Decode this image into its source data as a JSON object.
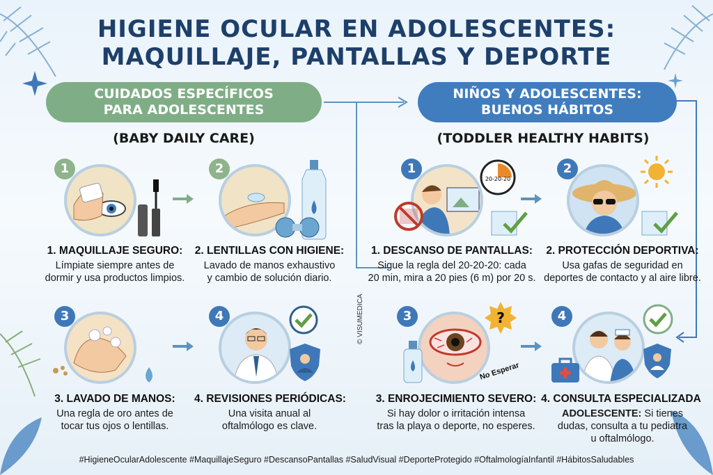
{
  "title": {
    "line1": "HIGIENE OCULAR EN ADOLESCENTES:",
    "line2": "MAQUILLAJE, PANTALLAS Y DEPORTE"
  },
  "left": {
    "banner_line1": "CUIDADOS ESPECÍFICOS",
    "banner_line2": "PARA ADOLESCENTES",
    "subtitle": "(BABY DAILY CARE)",
    "items": [
      {
        "num": "1",
        "title": "1. MAQUILLAJE SEGURO:",
        "text1": "Límpiate siempre antes de",
        "text2": "dormir y usa productos limpios."
      },
      {
        "num": "2",
        "title": "2. LENTILLAS CON HIGIENE:",
        "text1": "Lavado de manos exhaustivo",
        "text2": "y cambio de solución diario."
      },
      {
        "num": "3",
        "title": "3. LAVADO DE MANOS:",
        "text1": "Una regla de oro antes de",
        "text2": "tocar tus ojos o lentillas."
      },
      {
        "num": "4",
        "title": "4. REVISIONES PERIÓDICAS:",
        "text1": "Una visita anual al",
        "text2": "oftalmólogo es clave."
      }
    ]
  },
  "right": {
    "banner_line1": "NIÑOS Y ADOLESCENTES:",
    "banner_line2": "BUENOS HÁBITOS",
    "subtitle": "(TODDLER HEALTHY HABITS)",
    "items": [
      {
        "num": "1",
        "title": "1. DESCANSO DE PANTALLAS:",
        "text1": "Sigue la regla del 20-20-20: cada",
        "text2": "20 min, mira a 20 pies (6 m) por 20 s."
      },
      {
        "num": "2",
        "title": "2. PROTECCIÓN DEPORTIVA:",
        "text1": "Usa gafas de seguridad en",
        "text2": "deportes de contacto y al aire libre."
      },
      {
        "num": "3",
        "title": "3. ENROJECIMIENTO SEVERO:",
        "text1": "Si hay dolor o irritación intensa",
        "text2": "tras la playa o deporte, no esperes."
      },
      {
        "num": "4",
        "title": "4. CONSULTA ESPECIALIZADA",
        "title2": "ADOLESCENTE:",
        "title2_rest": " Si tienes",
        "text1": "dudas, consulta a tu pediatra",
        "text2": "u oftalmólogo."
      }
    ]
  },
  "clock_label": "20-20-20",
  "no_esperar": "No Esperar",
  "watermark": "© VISUMEDICA",
  "hashtags": "#HigieneOcularAdolescente #MaquillajeSeguro #DescansoPantallas #SaludVisual #DeporteProtegido #OftalmologíaInfantil #HábitosSaludables",
  "colors": {
    "title": "#1d3f6a",
    "green_banner": "#7fae86",
    "blue_banner": "#3f7dbf",
    "green_badge": "#8fb38a",
    "blue_badge": "#3f78b8"
  }
}
